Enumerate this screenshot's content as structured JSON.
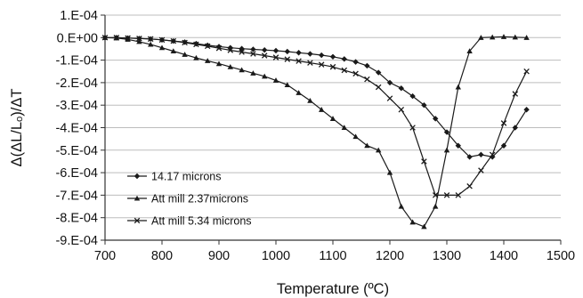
{
  "chart_data": {
    "type": "line",
    "title": "",
    "xlabel": "Temperature (ºC)",
    "ylabel": "Δ(ΔL/Lₒ)/ΔT",
    "xlim": [
      700,
      1500
    ],
    "ylim": [
      -0.0009,
      0.0001
    ],
    "xticks": [
      700,
      800,
      900,
      1000,
      1100,
      1200,
      1300,
      1400,
      1500
    ],
    "xtick_labels": [
      "700",
      "800",
      "900",
      "1000",
      "1100",
      "1200",
      "1300",
      "1400",
      "1500"
    ],
    "yticks": [
      0.0001,
      0,
      -0.0001,
      -0.0002,
      -0.0003,
      -0.0004,
      -0.0005,
      -0.0006,
      -0.0007,
      -0.0008,
      -0.0009
    ],
    "ytick_labels": [
      "1.E-04",
      "0.E+00",
      "-1.E-04",
      "-2.E-04",
      "-3.E-04",
      "-4.E-04",
      "-5.E-04",
      "-6.E-04",
      "-7.E-04",
      "-8.E-04",
      "-9.E-04"
    ],
    "grid": {
      "horizontal": true,
      "vertical": false
    },
    "legend_position": "bottom-left",
    "series": [
      {
        "name": "14.17 microns",
        "marker": "diamond",
        "color": "#1a1a1a",
        "x": [
          700,
          720,
          740,
          760,
          780,
          800,
          820,
          840,
          860,
          880,
          900,
          920,
          940,
          960,
          980,
          1000,
          1020,
          1040,
          1060,
          1080,
          1100,
          1120,
          1140,
          1160,
          1180,
          1200,
          1220,
          1240,
          1260,
          1280,
          1300,
          1320,
          1340,
          1360,
          1380,
          1400,
          1420,
          1440
        ],
        "y": [
          0.0,
          0.0,
          -2e-06,
          -4e-06,
          -6e-06,
          -1e-05,
          -1.5e-05,
          -2e-05,
          -2.7e-05,
          -3.4e-05,
          -4e-05,
          -4.5e-05,
          -4.9e-05,
          -5.2e-05,
          -5.5e-05,
          -5.8e-05,
          -6.2e-05,
          -6.7e-05,
          -7.2e-05,
          -7.8e-05,
          -8.5e-05,
          -9.5e-05,
          -0.000108,
          -0.000125,
          -0.000155,
          -0.0002,
          -0.000225,
          -0.00026,
          -0.0003,
          -0.00036,
          -0.00042,
          -0.00048,
          -0.00053,
          -0.00052,
          -0.00053,
          -0.00048,
          -0.0004,
          -0.00032
        ]
      },
      {
        "name": "Att mill 2.37microns",
        "marker": "triangle",
        "color": "#1a1a1a",
        "x": [
          700,
          720,
          740,
          760,
          780,
          800,
          820,
          840,
          860,
          880,
          900,
          920,
          940,
          960,
          980,
          1000,
          1020,
          1040,
          1060,
          1080,
          1100,
          1120,
          1140,
          1160,
          1180,
          1200,
          1220,
          1240,
          1260,
          1280,
          1300,
          1320,
          1340,
          1360,
          1380,
          1400,
          1420,
          1440
        ],
        "y": [
          0.0,
          -2e-06,
          -8e-06,
          -1.8e-05,
          -3e-05,
          -4.5e-05,
          -6e-05,
          -7.5e-05,
          -9e-05,
          -0.000103,
          -0.000116,
          -0.00013,
          -0.000144,
          -0.000158,
          -0.000172,
          -0.00019,
          -0.00021,
          -0.000245,
          -0.00028,
          -0.00032,
          -0.00036,
          -0.0004,
          -0.00044,
          -0.00048,
          -0.0005,
          -0.0006,
          -0.00075,
          -0.00082,
          -0.00084,
          -0.00075,
          -0.0005,
          -0.00022,
          -6e-05,
          0.0,
          2e-06,
          4e-06,
          2e-06,
          0.0
        ]
      },
      {
        "name": "Att mill 5.34 microns",
        "marker": "x",
        "color": "#1a1a1a",
        "x": [
          700,
          720,
          740,
          760,
          780,
          800,
          820,
          840,
          860,
          880,
          900,
          920,
          940,
          960,
          980,
          1000,
          1020,
          1040,
          1060,
          1080,
          1100,
          1120,
          1140,
          1160,
          1180,
          1200,
          1220,
          1240,
          1260,
          1280,
          1300,
          1320,
          1340,
          1360,
          1380,
          1400,
          1420,
          1440
        ],
        "y": [
          0.0,
          0.0,
          -2e-06,
          -4e-06,
          -6e-06,
          -1e-05,
          -1.5e-05,
          -2.2e-05,
          -3e-05,
          -3.8e-05,
          -4.7e-05,
          -5.6e-05,
          -6.4e-05,
          -7.2e-05,
          -8e-05,
          -8.8e-05,
          -9.6e-05,
          -0.000104,
          -0.000112,
          -0.00012,
          -0.00013,
          -0.000145,
          -0.00016,
          -0.000185,
          -0.00022,
          -0.00027,
          -0.00032,
          -0.0004,
          -0.00055,
          -0.0007,
          -0.0007,
          -0.0007,
          -0.00066,
          -0.00059,
          -0.00052,
          -0.00038,
          -0.00025,
          -0.00015
        ]
      }
    ]
  }
}
